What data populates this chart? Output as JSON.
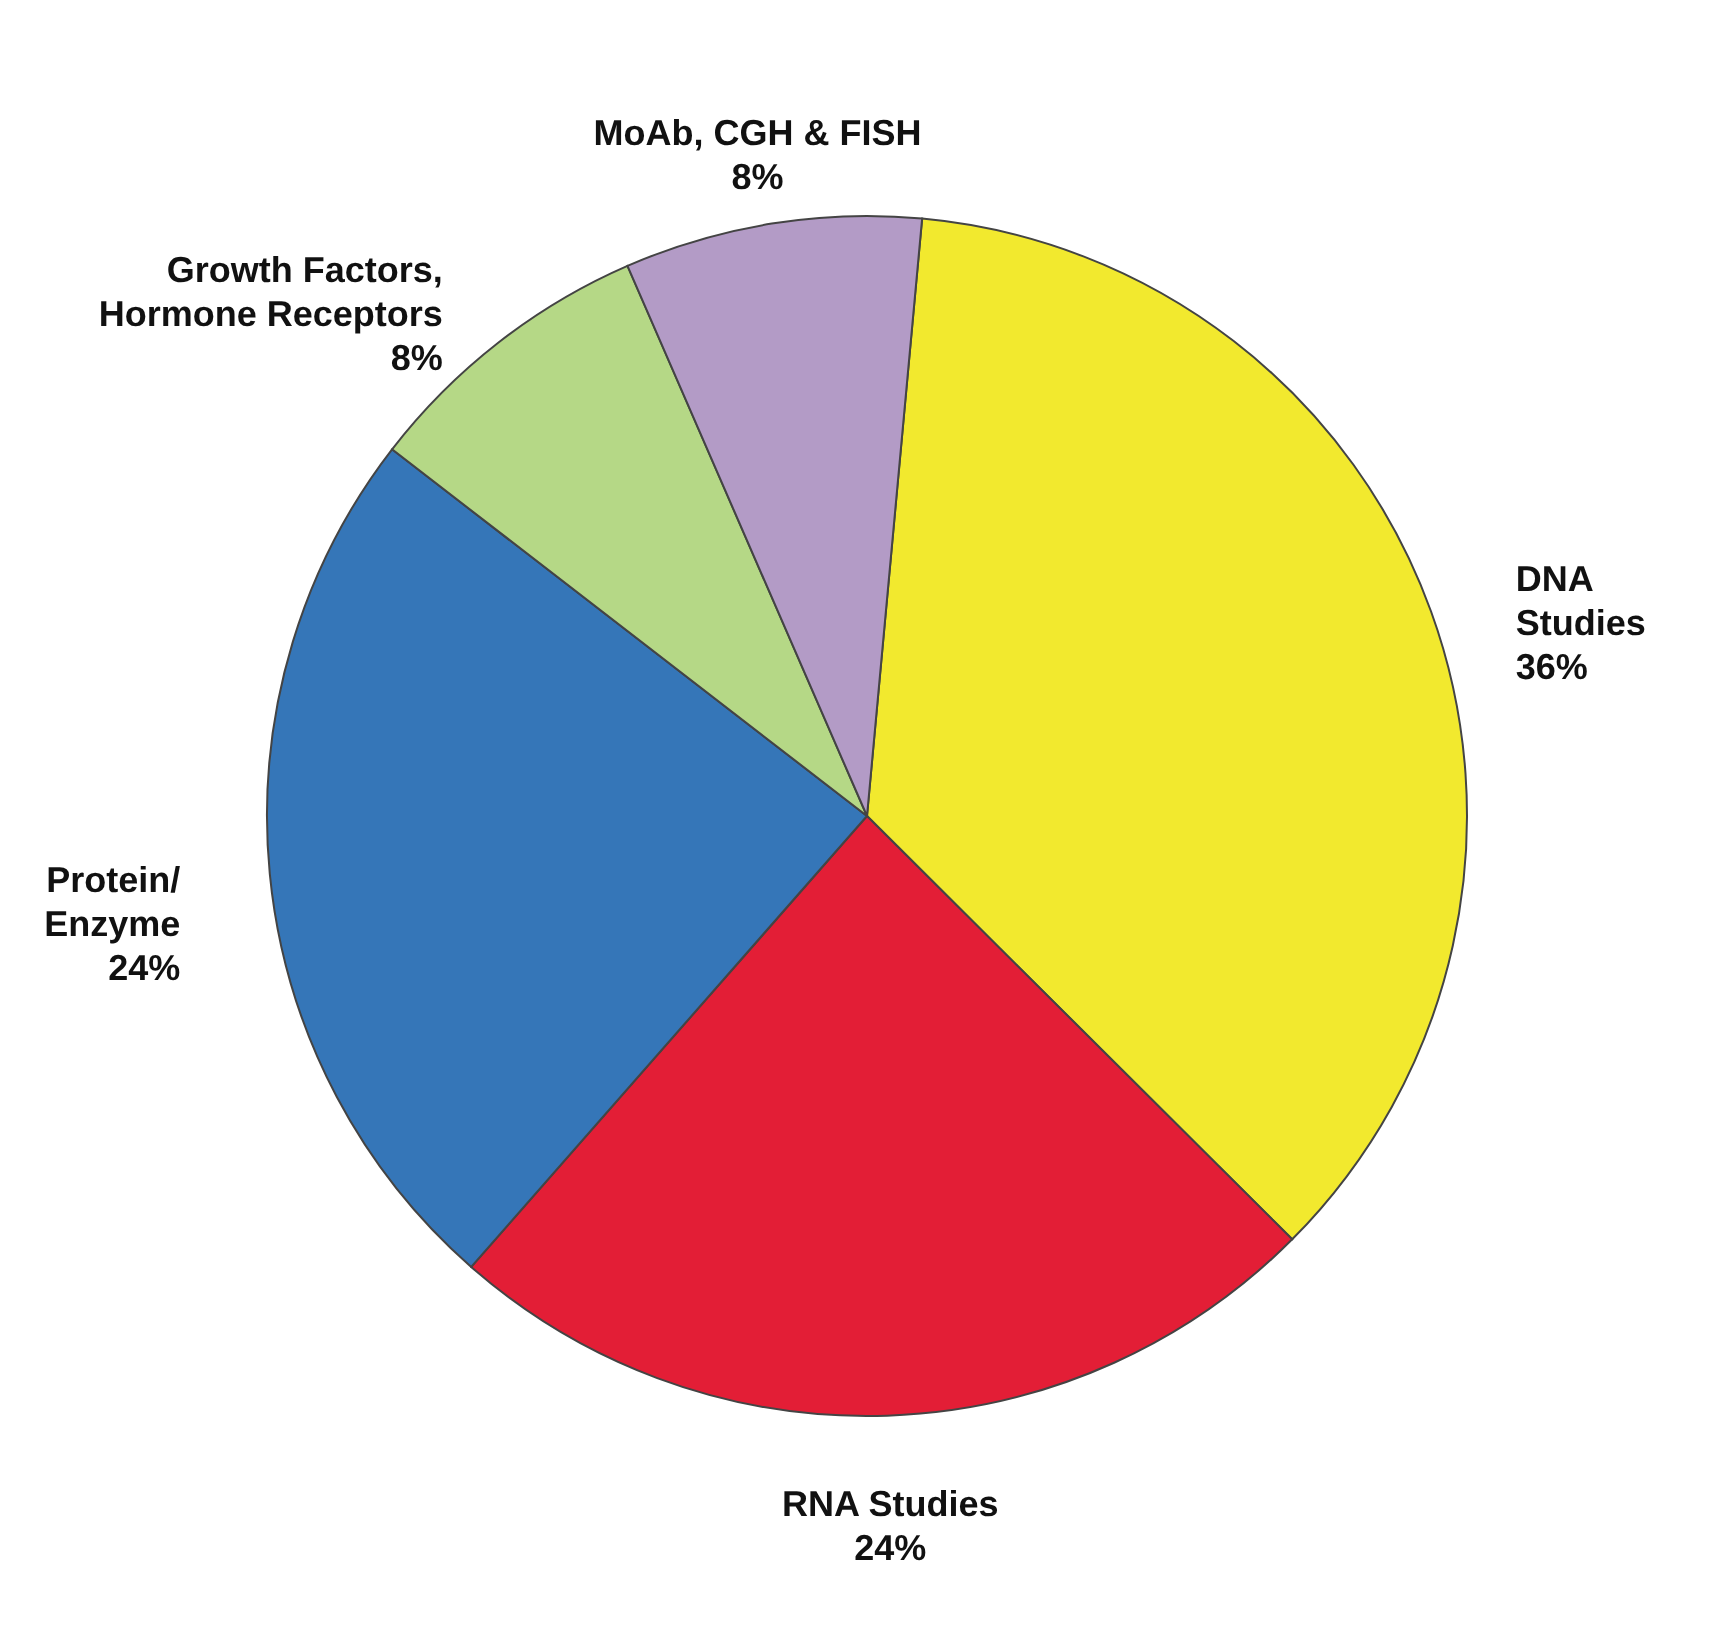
{
  "chart_data": {
    "type": "pie",
    "categories": [
      "DNA\nStudies",
      "RNA Studies",
      "Protein/\nEnzyme",
      "Growth Factors,\nHormone Receptors",
      "MoAb, CGH & FISH"
    ],
    "values": [
      36,
      24,
      24,
      8,
      8
    ],
    "value_labels": [
      "36%",
      "24%",
      "24%",
      "8%",
      "8%"
    ],
    "colors": [
      "#f2e92e",
      "#e31e36",
      "#3576b8",
      "#b5d886",
      "#b39bc6"
    ]
  }
}
